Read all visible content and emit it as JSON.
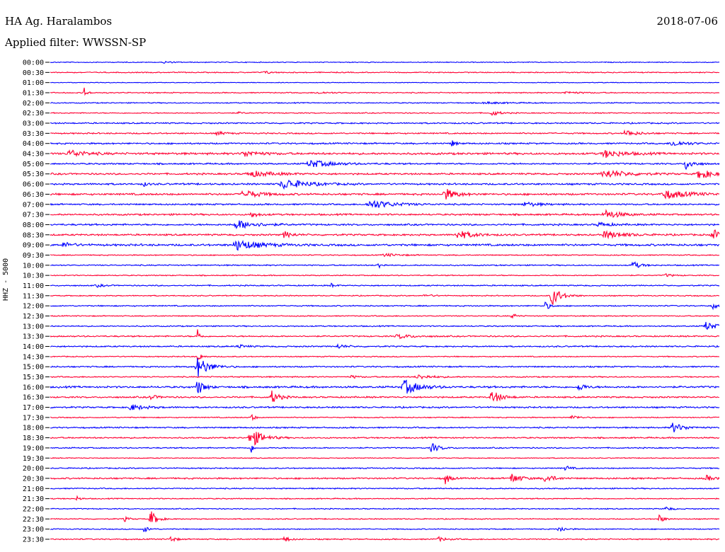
{
  "header": {
    "station": "HA Ag. Haralambos",
    "date": "2018-07-06",
    "filter": "Applied filter: WWSSN-SP"
  },
  "chart_data": {
    "type": "line",
    "ylabel": "HHZ - 5000",
    "colors": [
      "#0000ff",
      "#ff0033"
    ],
    "rows": [
      {
        "label": "00:00",
        "color": "#0000ff",
        "noise": 0.5,
        "events": [
          [
            0.17,
            1.5,
            0.01
          ]
        ]
      },
      {
        "label": "00:30",
        "color": "#ff0033",
        "noise": 0.6,
        "events": [
          [
            0.32,
            2.0,
            0.01
          ]
        ]
      },
      {
        "label": "01:00",
        "color": "#0000ff",
        "noise": 0.4,
        "events": []
      },
      {
        "label": "01:30",
        "color": "#ff0033",
        "noise": 0.6,
        "events": [
          [
            0.05,
            9.0,
            0.004
          ],
          [
            0.4,
            1.2,
            0.02
          ],
          [
            0.77,
            1.5,
            0.02
          ]
        ]
      },
      {
        "label": "02:00",
        "color": "#0000ff",
        "noise": 0.6,
        "events": [
          [
            0.65,
            1.2,
            0.03
          ]
        ]
      },
      {
        "label": "02:30",
        "color": "#ff0033",
        "noise": 0.6,
        "events": [
          [
            0.28,
            1.2,
            0.01
          ],
          [
            0.66,
            4.0,
            0.01
          ]
        ]
      },
      {
        "label": "03:00",
        "color": "#0000ff",
        "noise": 0.8,
        "events": []
      },
      {
        "label": "03:30",
        "color": "#ff0033",
        "noise": 0.8,
        "events": [
          [
            0.25,
            2.5,
            0.01
          ],
          [
            0.86,
            4.5,
            0.015
          ]
        ]
      },
      {
        "label": "04:00",
        "color": "#0000ff",
        "noise": 0.9,
        "events": [
          [
            0.6,
            5.0,
            0.005
          ],
          [
            0.93,
            4.0,
            0.02
          ]
        ]
      },
      {
        "label": "04:30",
        "color": "#ff0033",
        "noise": 1.2,
        "events": [
          [
            0.03,
            5.0,
            0.02
          ],
          [
            0.29,
            4.0,
            0.02
          ],
          [
            0.83,
            5.0,
            0.025
          ]
        ]
      },
      {
        "label": "05:00",
        "color": "#0000ff",
        "noise": 0.9,
        "events": [
          [
            0.39,
            5.0,
            0.03
          ],
          [
            0.95,
            8.0,
            0.01
          ]
        ]
      },
      {
        "label": "05:30",
        "color": "#ff0033",
        "noise": 1.0,
        "events": [
          [
            0.3,
            4.0,
            0.03
          ],
          [
            0.83,
            5.5,
            0.03
          ],
          [
            0.97,
            8.0,
            0.015
          ]
        ]
      },
      {
        "label": "06:00",
        "color": "#0000ff",
        "noise": 1.0,
        "events": [
          [
            0.35,
            7.0,
            0.03
          ],
          [
            0.14,
            3.0,
            0.005
          ]
        ]
      },
      {
        "label": "06:30",
        "color": "#ff0033",
        "noise": 1.1,
        "events": [
          [
            0.29,
            6.0,
            0.02
          ],
          [
            0.59,
            8.0,
            0.015
          ],
          [
            0.92,
            6.0,
            0.03
          ]
        ]
      },
      {
        "label": "07:00",
        "color": "#0000ff",
        "noise": 0.9,
        "events": [
          [
            0.48,
            6.0,
            0.03
          ],
          [
            0.71,
            3.0,
            0.02
          ]
        ]
      },
      {
        "label": "07:30",
        "color": "#ff0033",
        "noise": 1.0,
        "events": [
          [
            0.83,
            6.0,
            0.02
          ],
          [
            0.3,
            4.0,
            0.01
          ]
        ]
      },
      {
        "label": "08:00",
        "color": "#0000ff",
        "noise": 1.0,
        "events": [
          [
            0.28,
            6.0,
            0.025
          ],
          [
            0.82,
            3.0,
            0.015
          ]
        ]
      },
      {
        "label": "08:30",
        "color": "#ff0033",
        "noise": 1.0,
        "events": [
          [
            0.35,
            5.0,
            0.01
          ],
          [
            0.61,
            6.0,
            0.02
          ],
          [
            0.83,
            5.0,
            0.025
          ],
          [
            0.99,
            8.0,
            0.01
          ]
        ]
      },
      {
        "label": "09:00",
        "color": "#0000ff",
        "noise": 1.2,
        "events": [
          [
            0.28,
            7.0,
            0.03
          ],
          [
            0.02,
            4.0,
            0.01
          ]
        ]
      },
      {
        "label": "09:30",
        "color": "#ff0033",
        "noise": 0.6,
        "events": [
          [
            0.5,
            2.0,
            0.02
          ]
        ]
      },
      {
        "label": "10:00",
        "color": "#0000ff",
        "noise": 0.7,
        "events": [
          [
            0.49,
            5.0,
            0.005
          ],
          [
            0.87,
            6.0,
            0.01
          ]
        ]
      },
      {
        "label": "10:30",
        "color": "#ff0033",
        "noise": 0.6,
        "events": [
          [
            0.92,
            2.0,
            0.01
          ]
        ]
      },
      {
        "label": "11:00",
        "color": "#0000ff",
        "noise": 0.7,
        "events": [
          [
            0.07,
            2.0,
            0.01
          ],
          [
            0.42,
            3.0,
            0.005
          ]
        ]
      },
      {
        "label": "11:30",
        "color": "#ff0033",
        "noise": 0.6,
        "events": [
          [
            0.75,
            14.0,
            0.012
          ],
          [
            0.56,
            2.0,
            0.01
          ]
        ]
      },
      {
        "label": "12:00",
        "color": "#0000ff",
        "noise": 0.7,
        "events": [
          [
            0.74,
            6.0,
            0.006
          ],
          [
            0.99,
            6.0,
            0.005
          ]
        ]
      },
      {
        "label": "12:30",
        "color": "#ff0033",
        "noise": 0.6,
        "events": [
          [
            0.69,
            5.0,
            0.005
          ]
        ]
      },
      {
        "label": "13:00",
        "color": "#0000ff",
        "noise": 0.7,
        "events": [
          [
            0.98,
            6.0,
            0.015
          ]
        ]
      },
      {
        "label": "13:30",
        "color": "#ff0033",
        "noise": 0.8,
        "events": [
          [
            0.52,
            3.0,
            0.02
          ],
          [
            0.22,
            12.0,
            0.003
          ]
        ]
      },
      {
        "label": "14:00",
        "color": "#0000ff",
        "noise": 0.8,
        "events": [
          [
            0.28,
            3.0,
            0.01
          ],
          [
            0.43,
            3.0,
            0.01
          ]
        ]
      },
      {
        "label": "14:30",
        "color": "#ff0033",
        "noise": 0.6,
        "events": [
          [
            0.22,
            8.0,
            0.005
          ]
        ]
      },
      {
        "label": "15:00",
        "color": "#0000ff",
        "noise": 0.8,
        "events": [
          [
            0.22,
            15.0,
            0.015
          ]
        ]
      },
      {
        "label": "15:30",
        "color": "#ff0033",
        "noise": 0.7,
        "events": [
          [
            0.45,
            2.0,
            0.01
          ],
          [
            0.55,
            3.0,
            0.02
          ]
        ]
      },
      {
        "label": "16:00",
        "color": "#0000ff",
        "noise": 1.1,
        "events": [
          [
            0.22,
            12.0,
            0.008
          ],
          [
            0.53,
            10.0,
            0.02
          ],
          [
            0.79,
            6.0,
            0.008
          ]
        ]
      },
      {
        "label": "16:30",
        "color": "#ff0033",
        "noise": 0.9,
        "events": [
          [
            0.33,
            10.0,
            0.01
          ],
          [
            0.66,
            10.0,
            0.012
          ],
          [
            0.15,
            3.0,
            0.01
          ]
        ]
      },
      {
        "label": "17:00",
        "color": "#0000ff",
        "noise": 0.9,
        "events": [
          [
            0.12,
            4.0,
            0.02
          ]
        ]
      },
      {
        "label": "17:30",
        "color": "#ff0033",
        "noise": 0.6,
        "events": [
          [
            0.3,
            8.0,
            0.004
          ],
          [
            0.78,
            3.0,
            0.01
          ]
        ]
      },
      {
        "label": "18:00",
        "color": "#0000ff",
        "noise": 0.8,
        "events": [
          [
            0.93,
            7.0,
            0.015
          ]
        ]
      },
      {
        "label": "18:30",
        "color": "#ff0033",
        "noise": 0.8,
        "events": [
          [
            0.3,
            14.0,
            0.015
          ]
        ]
      },
      {
        "label": "19:00",
        "color": "#0000ff",
        "noise": 0.7,
        "events": [
          [
            0.57,
            7.0,
            0.01
          ],
          [
            0.3,
            8.0,
            0.003
          ]
        ]
      },
      {
        "label": "19:30",
        "color": "#ff0033",
        "noise": 0.5,
        "events": []
      },
      {
        "label": "20:00",
        "color": "#0000ff",
        "noise": 0.7,
        "events": [
          [
            0.77,
            4.0,
            0.006
          ]
        ]
      },
      {
        "label": "20:30",
        "color": "#ff0033",
        "noise": 0.9,
        "events": [
          [
            0.59,
            9.0,
            0.006
          ],
          [
            0.69,
            7.0,
            0.012
          ],
          [
            0.74,
            7.0,
            0.01
          ],
          [
            0.98,
            4.0,
            0.01
          ]
        ]
      },
      {
        "label": "21:00",
        "color": "#0000ff",
        "noise": 0.7,
        "events": []
      },
      {
        "label": "21:30",
        "color": "#ff0033",
        "noise": 0.6,
        "events": [
          [
            0.04,
            4.0,
            0.004
          ]
        ]
      },
      {
        "label": "22:00",
        "color": "#0000ff",
        "noise": 0.6,
        "events": [
          [
            0.92,
            3.0,
            0.008
          ]
        ]
      },
      {
        "label": "22:30",
        "color": "#ff0033",
        "noise": 0.6,
        "events": [
          [
            0.15,
            12.0,
            0.008
          ],
          [
            0.11,
            4.0,
            0.006
          ],
          [
            0.91,
            6.0,
            0.006
          ]
        ]
      },
      {
        "label": "23:00",
        "color": "#0000ff",
        "noise": 0.6,
        "events": [
          [
            0.14,
            5.0,
            0.006
          ],
          [
            0.76,
            5.0,
            0.008
          ]
        ]
      },
      {
        "label": "23:30",
        "color": "#ff0033",
        "noise": 0.7,
        "events": [
          [
            0.18,
            5.0,
            0.006
          ],
          [
            0.35,
            5.0,
            0.006
          ],
          [
            0.58,
            3.0,
            0.01
          ]
        ]
      }
    ]
  }
}
